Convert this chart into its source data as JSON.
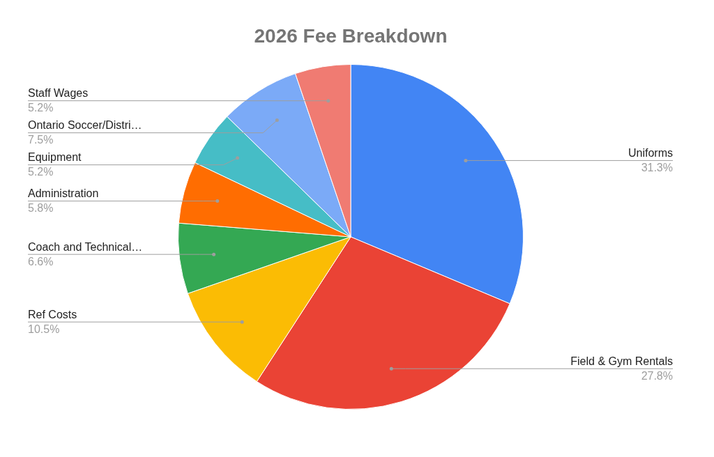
{
  "chart_data": {
    "type": "pie",
    "title": "2026 Fee Breakdown",
    "categories": [
      "Uniforms",
      "Field & Gym Rentals",
      "Ref Costs",
      "Coach and Technical…",
      "Administration",
      "Equipment",
      "Ontario Soccer/Distri…",
      "Staff Wages"
    ],
    "values": [
      31.3,
      27.8,
      10.5,
      6.6,
      5.8,
      5.2,
      7.5,
      5.2
    ],
    "colors": [
      "#4285f4",
      "#ea4335",
      "#fbbc04",
      "#34a853",
      "#ff6d01",
      "#46bdc6",
      "#7baaf7",
      "#f07b72"
    ],
    "value_labels": [
      "31.3%",
      "27.8%",
      "10.5%",
      "6.6%",
      "5.8%",
      "5.2%",
      "7.5%",
      "5.2%"
    ]
  }
}
